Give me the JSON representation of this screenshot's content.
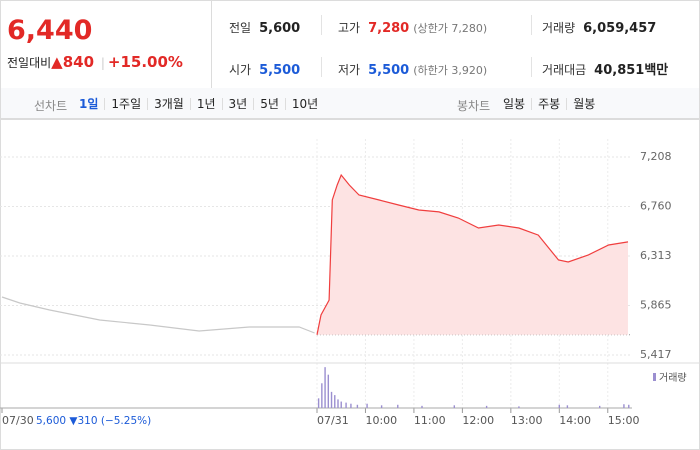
{
  "header": {
    "price": "6,440",
    "change_label": "전일대비",
    "change_arrow": "▲",
    "change": "840",
    "change_rate": "+15.00%",
    "stats": [
      [
        {
          "label": "전일",
          "value": "5,600",
          "color": "#222222"
        },
        {
          "label": "고가",
          "value": "7,280",
          "note": "(상한가 7,280)",
          "color": "#e22926"
        },
        {
          "label": "거래량",
          "value": "6,059,457",
          "color": "#222222"
        }
      ],
      [
        {
          "label": "시가",
          "value": "5,500",
          "color": "#1c5bd8"
        },
        {
          "label": "저가",
          "value": "5,500",
          "note": "(하한가 3,920)",
          "color": "#1c5bd8"
        },
        {
          "label": "거래대금",
          "value": "40,851백만",
          "color": "#222222"
        }
      ]
    ]
  },
  "tabs": {
    "line_label": "선차트",
    "periods": [
      "1일",
      "1주일",
      "3개월",
      "1년",
      "3년",
      "5년",
      "10년"
    ],
    "selected": 0,
    "candle_label": "봉차트",
    "candles": [
      "일봉",
      "주봉",
      "월봉"
    ]
  },
  "chart_data": {
    "type": "line",
    "xlim": [
      0,
      780
    ],
    "xticks": [
      {
        "value": 0,
        "label": "07/30"
      },
      {
        "value": 390,
        "label": "07/31"
      },
      {
        "value": 450,
        "label": "10:00"
      },
      {
        "value": 510,
        "label": "11:00"
      },
      {
        "value": 570,
        "label": "12:00"
      },
      {
        "value": 630,
        "label": "13:00"
      },
      {
        "value": 690,
        "label": "14:00"
      },
      {
        "value": 750,
        "label": "15:00"
      }
    ],
    "ylim": [
      5417,
      7208
    ],
    "yticks": [
      {
        "value": 7208,
        "label": "7,208"
      },
      {
        "value": 6760,
        "label": "6,760"
      },
      {
        "value": 6313,
        "label": "6,313"
      },
      {
        "value": 5865,
        "label": "5,865"
      },
      {
        "value": 5417,
        "label": "5,417"
      }
    ],
    "baseline": 5600,
    "grid": true,
    "series": [
      {
        "color": "#c8c8c8",
        "x": [
          0,
          22,
          59,
          121,
          183,
          244,
          306,
          368,
          387
        ],
        "values": [
          5942,
          5887,
          5824,
          5734,
          5688,
          5634,
          5670,
          5670,
          5616
        ]
      },
      {
        "color": "#f03e3e",
        "fill": "#fde3e3",
        "x": [
          390,
          395,
          405,
          409,
          415,
          420,
          430,
          442,
          467,
          491,
          516,
          541,
          565,
          590,
          615,
          640,
          664,
          689,
          701,
          726,
          751,
          775
        ],
        "values": [
          5600,
          5779,
          5914,
          6819,
          6955,
          7045,
          6955,
          6864,
          6819,
          6774,
          6729,
          6711,
          6656,
          6566,
          6593,
          6566,
          6502,
          6276,
          6258,
          6322,
          6412,
          6440
        ]
      }
    ],
    "volume": {
      "name": "거래량",
      "color": "#9b8fd0",
      "vlim": [
        0,
        400000
      ],
      "x": [
        392,
        396,
        400,
        404,
        408,
        412,
        416,
        420,
        426,
        432,
        440,
        452,
        470,
        490,
        520,
        560,
        600,
        640,
        690,
        700,
        740,
        770,
        776
      ],
      "values": [
        90000,
        230000,
        380000,
        310000,
        150000,
        120000,
        80000,
        60000,
        50000,
        40000,
        30000,
        40000,
        25000,
        30000,
        20000,
        25000,
        20000,
        15000,
        30000,
        25000,
        20000,
        35000,
        30000
      ]
    },
    "prev_date": "07/30",
    "prev_summary": "5,600 ▼310 (−5.25%)"
  }
}
